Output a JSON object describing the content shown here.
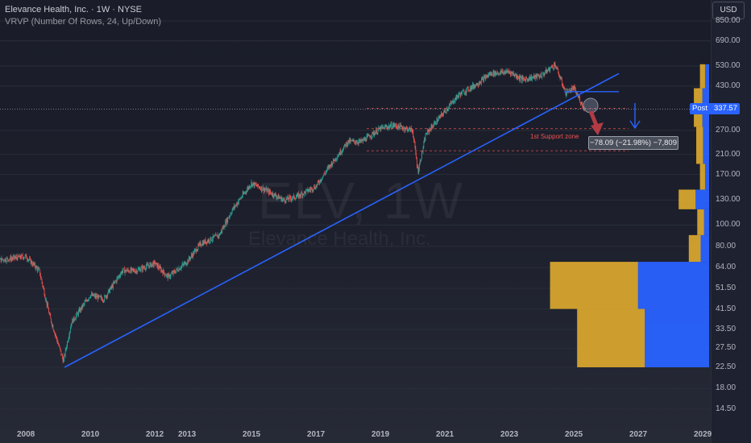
{
  "header": {
    "title": "Elevance Health, Inc. · 1W · NYSE",
    "indicator": "VRVP (Number Of Rows, 24, Up/Down)"
  },
  "watermark": {
    "ticker": "ELV, 1W",
    "name": "Elevance Health, Inc."
  },
  "currency_button": "USD",
  "post_label": {
    "label": "Post",
    "value": "337.57"
  },
  "measure_label": "−78.09 (−21.98%) −7,809",
  "support_label": "1st Support zone",
  "colors": {
    "up": "#26a69a",
    "down": "#ef5350",
    "trendline": "#2962ff",
    "vol_up": "#e0ac2e",
    "vol_down": "#2962ff"
  },
  "chart_data": {
    "type": "candlestick",
    "y_scale": "log",
    "y_ticks": [
      "850.00",
      "690.00",
      "530.00",
      "430.00",
      "270.00",
      "210.00",
      "170.00",
      "130.00",
      "100.00",
      "80.00",
      "64.00",
      "51.50",
      "41.50",
      "33.50",
      "27.50",
      "22.50",
      "18.00",
      "14.50"
    ],
    "x_ticks": [
      "2008",
      "2010",
      "2012",
      "2013",
      "2015",
      "2017",
      "2019",
      "2021",
      "2023",
      "2025",
      "2027",
      "2029"
    ],
    "approx_series": {
      "name": "ELV weekly close (approx.)",
      "x": [
        "2007-01",
        "2007-06",
        "2008-01",
        "2008-06",
        "2008-10",
        "2009-03",
        "2009-06",
        "2010-01",
        "2010-06",
        "2011-01",
        "2011-06",
        "2012-01",
        "2012-06",
        "2013-01",
        "2013-06",
        "2014-01",
        "2014-06",
        "2015-01",
        "2015-06",
        "2016-01",
        "2016-06",
        "2017-01",
        "2017-06",
        "2018-01",
        "2018-06",
        "2019-01",
        "2019-06",
        "2020-01",
        "2020-03",
        "2020-06",
        "2021-01",
        "2021-06",
        "2022-01",
        "2022-06",
        "2023-01",
        "2023-06",
        "2024-01",
        "2024-06",
        "2024-10",
        "2025-01",
        "2025-05"
      ],
      "y": [
        69,
        70,
        72,
        62,
        38,
        24,
        36,
        48,
        46,
        62,
        62,
        67,
        58,
        68,
        82,
        90,
        118,
        155,
        145,
        130,
        135,
        150,
        185,
        240,
        240,
        275,
        285,
        270,
        175,
        260,
        330,
        390,
        440,
        490,
        500,
        460,
        480,
        540,
        400,
        420,
        337.57
      ]
    },
    "current_price": 337.57,
    "measure": {
      "change": -78.09,
      "change_pct": -21.98
    },
    "volume_profile": {
      "rows": [
        {
          "price_lo": 22.5,
          "price_hi": 41.5,
          "up": 2.0,
          "down": 1.9
        },
        {
          "price_lo": 41.5,
          "price_hi": 68,
          "up": 2.6,
          "down": 2.1
        },
        {
          "price_lo": 68,
          "price_hi": 90,
          "up": 0.35,
          "down": 0.25
        },
        {
          "price_lo": 90,
          "price_hi": 118,
          "up": 0.2,
          "down": 0.15
        },
        {
          "price_lo": 118,
          "price_hi": 145,
          "up": 0.5,
          "down": 0.4
        },
        {
          "price_lo": 145,
          "price_hi": 190,
          "up": 0.15,
          "down": 0.12
        },
        {
          "price_lo": 190,
          "price_hi": 280,
          "up": 0.2,
          "down": 0.18
        },
        {
          "price_lo": 280,
          "price_hi": 420,
          "up": 0.25,
          "down": 0.2
        },
        {
          "price_lo": 420,
          "price_hi": 540,
          "up": 0.15,
          "down": 0.12
        }
      ]
    }
  }
}
